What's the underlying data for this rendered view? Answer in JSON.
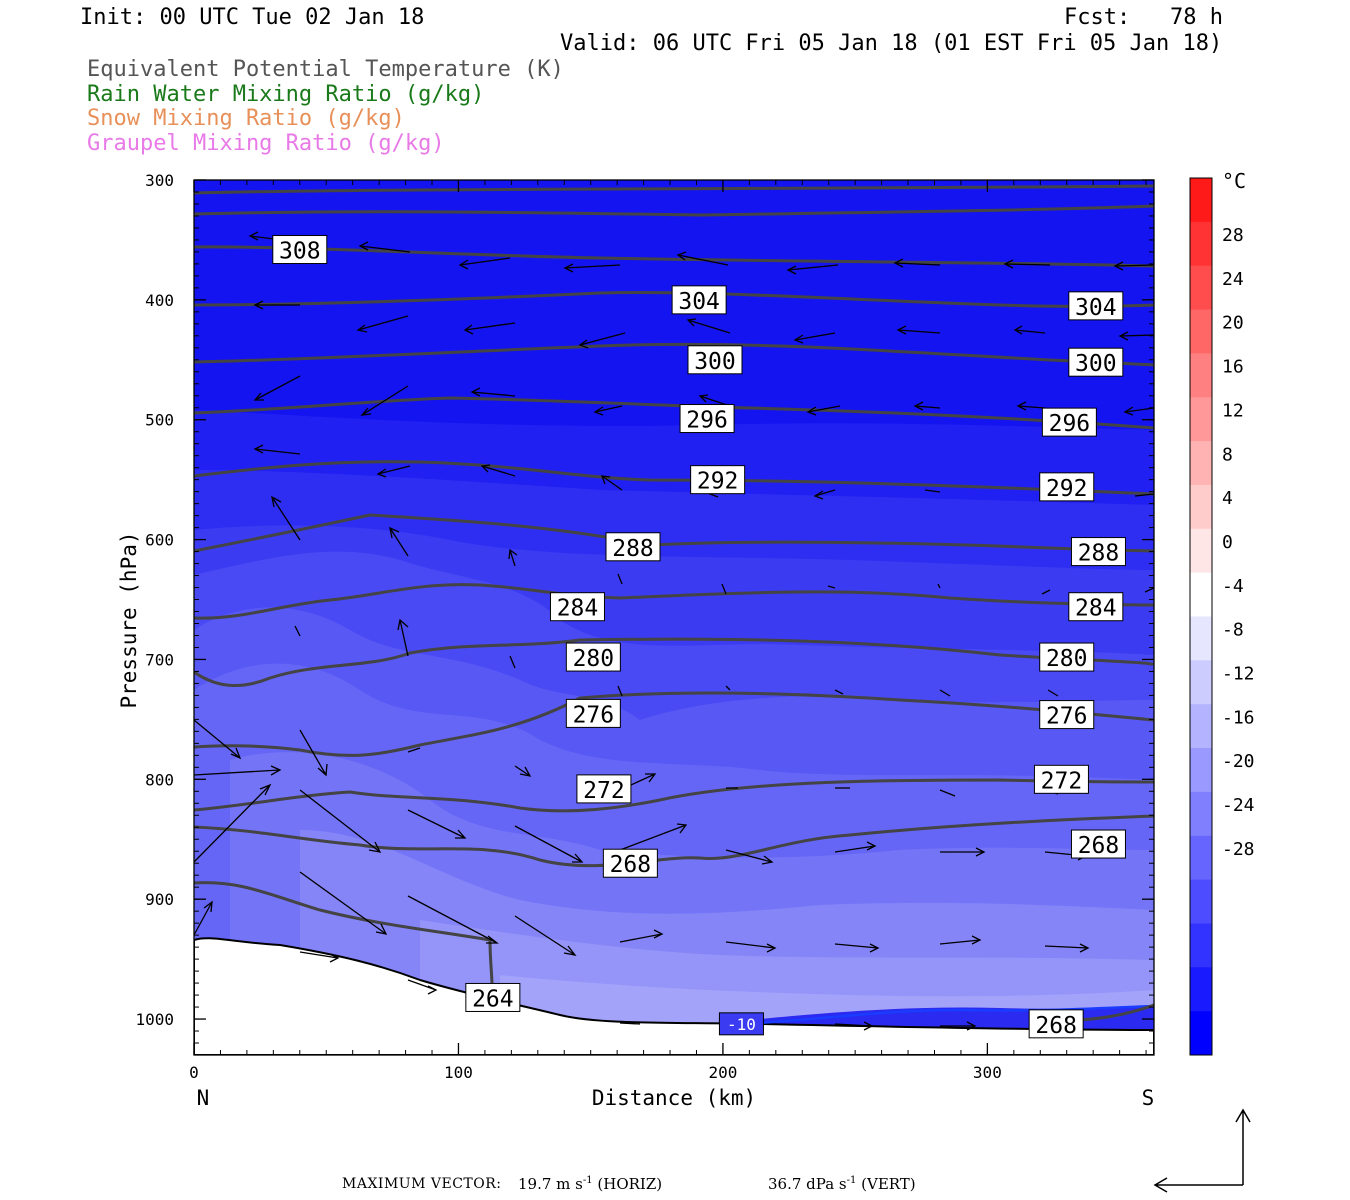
{
  "header": {
    "init": "Init: 00 UTC Tue 02 Jan 18",
    "fcst": "Fcst:   78 h",
    "valid": "Valid: 06 UTC Fri 05 Jan 18 (01 EST Fri 05 Jan 18)"
  },
  "legend": {
    "eq_theta": "Equivalent Potential Temperature (K)",
    "rain": "Rain Water Mixing Ratio (g/kg)",
    "snow": "Snow Mixing Ratio (g/kg)",
    "graupel": "Graupel Mixing Ratio (g/kg)"
  },
  "colorbar": {
    "unit": "°C",
    "ticks": [
      "28",
      "24",
      "20",
      "16",
      "12",
      "8",
      "4",
      "0",
      "-4",
      "-8",
      "-12",
      "-16",
      "-20",
      "-24",
      "-28"
    ],
    "colors": [
      "#ff1a1a",
      "#ff3333",
      "#ff4d4d",
      "#ff6666",
      "#ff8080",
      "#ff9999",
      "#ffb3b3",
      "#ffcccc",
      "#ffe6e6",
      "#ffffff",
      "#e6e6ff",
      "#ccccff",
      "#b3b3ff",
      "#9999ff",
      "#8080ff",
      "#6666ff",
      "#4d4dff",
      "#3333ff",
      "#1a1aff",
      "#0000ff"
    ]
  },
  "footer": {
    "label": "MAXIMUM VECTOR:",
    "horiz": "19.7 m s",
    "horiz_unit": "(HORIZ)",
    "vert": "36.7 dPa s",
    "vert_unit": "(VERT)",
    "exp": "-1"
  },
  "chart_data": {
    "type": "contour",
    "xlabel": "Distance (km)",
    "ylabel": "Pressure (hPa)",
    "xlim": [
      0,
      363
    ],
    "ylim": [
      1030,
      300
    ],
    "x_ticks": [
      "0",
      "100",
      "200",
      "300"
    ],
    "x_tick_values": [
      0,
      100,
      200,
      300
    ],
    "y_ticks": [
      "300",
      "400",
      "500",
      "600",
      "700",
      "800",
      "900",
      "1000"
    ],
    "y_tick_values": [
      300,
      400,
      500,
      600,
      700,
      800,
      900,
      1000
    ],
    "x_end_labels": {
      "left": "N",
      "right": "S"
    },
    "fill_field": "Temperature (°C)",
    "contour_field": "Equivalent Potential Temperature (K)",
    "contour_labels": [
      {
        "value": "308",
        "x": 40,
        "p": 358
      },
      {
        "value": "304",
        "x": 191,
        "p": 400
      },
      {
        "value": "304",
        "x": 341,
        "p": 405
      },
      {
        "value": "300",
        "x": 197,
        "p": 450
      },
      {
        "value": "300",
        "x": 341,
        "p": 452
      },
      {
        "value": "296",
        "x": 194,
        "p": 499
      },
      {
        "value": "296",
        "x": 331,
        "p": 502
      },
      {
        "value": "292",
        "x": 198,
        "p": 550
      },
      {
        "value": "292",
        "x": 330,
        "p": 556
      },
      {
        "value": "288",
        "x": 166,
        "p": 606
      },
      {
        "value": "288",
        "x": 342,
        "p": 610
      },
      {
        "value": "284",
        "x": 145,
        "p": 656
      },
      {
        "value": "284",
        "x": 341,
        "p": 656
      },
      {
        "value": "280",
        "x": 151,
        "p": 698
      },
      {
        "value": "280",
        "x": 330,
        "p": 698
      },
      {
        "value": "276",
        "x": 151,
        "p": 745
      },
      {
        "value": "276",
        "x": 330,
        "p": 746
      },
      {
        "value": "272",
        "x": 155,
        "p": 808
      },
      {
        "value": "272",
        "x": 328,
        "p": 800
      },
      {
        "value": "268",
        "x": 165,
        "p": 870
      },
      {
        "value": "268",
        "x": 342,
        "p": 854
      },
      {
        "value": "264",
        "x": 113,
        "p": 982
      },
      {
        "value": "268",
        "x": 326,
        "p": 1004
      }
    ],
    "temp_label": {
      "value": "-10",
      "x": 207,
      "p": 1004
    },
    "max_vector": {
      "horiz": "19.7 m s-1",
      "vert": "36.7 dPa s-1"
    }
  }
}
